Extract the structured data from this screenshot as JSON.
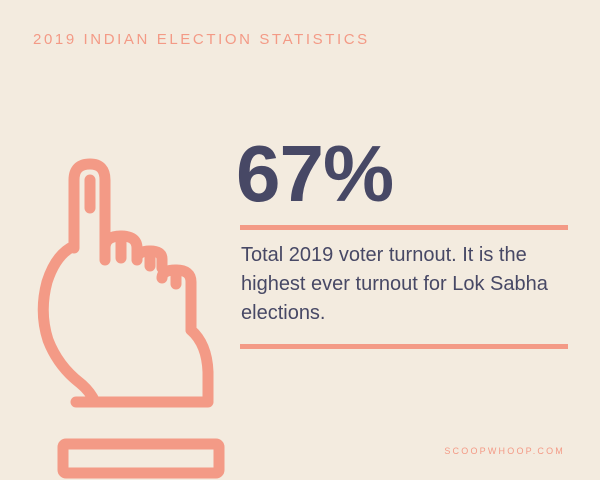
{
  "header": {
    "kicker": "2019 INDIAN ELECTION STATISTICS"
  },
  "stat": {
    "value": "67%",
    "description": "Total 2019 voter turnout. It is the highest ever turnout for Lok Sabha elections."
  },
  "footer": {
    "credit": "SCOOPWHOOP.COM"
  },
  "colors": {
    "background": "#f3ebdf",
    "accent": "#f39a86",
    "text": "#474865"
  },
  "icons": {
    "illustration": "inked-voting-finger-icon"
  }
}
